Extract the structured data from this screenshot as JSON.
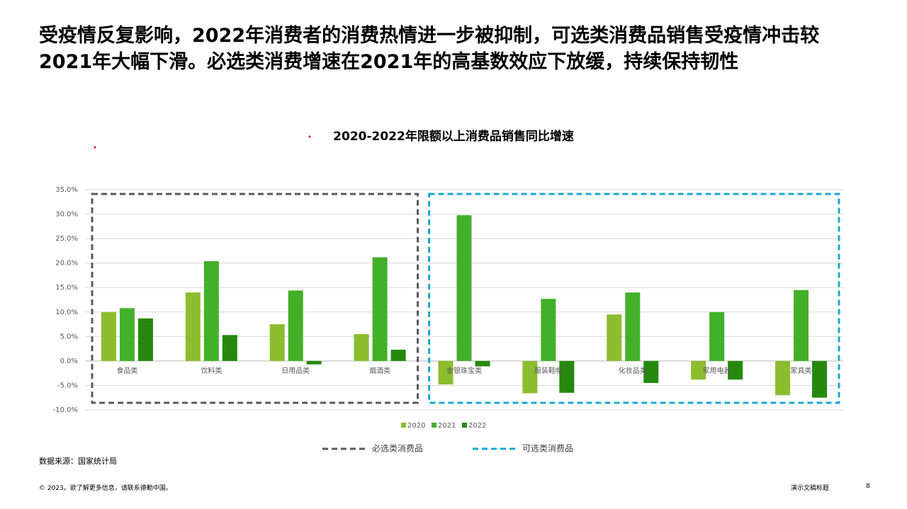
{
  "slide": {
    "headline": "受疫情反复影响，2022年消费者的消费热情进一步被抑制，可选类消费品销售受疫情冲击较2021年大幅下滑。必选类消费增速在2021年的高基数效应下放缓，持续保持韧性",
    "source": "数据来源：国家统计局",
    "copyright": "© 2023。欲了解更多信息，请联系德勤中国。",
    "deck_title": "演示文稿标题",
    "page": "8"
  },
  "chart_data": {
    "type": "bar",
    "title": "2020-2022年限额以上消费品销售同比增速",
    "categories": [
      "食品类",
      "饮料类",
      "日用品类",
      "烟酒类",
      "金银珠宝类",
      "服装鞋帽",
      "化妆品类",
      "家用电器",
      "家具类"
    ],
    "series": [
      {
        "name": "2020",
        "color": "#8cbd2e",
        "values": [
          10.0,
          14.0,
          7.5,
          5.5,
          -4.8,
          -6.6,
          9.5,
          -3.8,
          -7.0
        ]
      },
      {
        "name": "2021",
        "color": "#43b02a",
        "values": [
          10.8,
          20.4,
          14.4,
          21.2,
          29.8,
          12.7,
          14.0,
          10.0,
          14.5
        ]
      },
      {
        "name": "2022",
        "color": "#26890d",
        "values": [
          8.7,
          5.3,
          -0.7,
          2.3,
          -1.1,
          -6.5,
          -4.5,
          -3.8,
          -7.5
        ]
      }
    ],
    "ylim": [
      -10,
      35
    ],
    "yticks": [
      {
        "value": -10,
        "label": "-10.0%"
      },
      {
        "value": -5,
        "label": "-5.0%"
      },
      {
        "value": 0,
        "label": "0.0%"
      },
      {
        "value": 5,
        "label": "5.0%"
      },
      {
        "value": 10,
        "label": "10.0%"
      },
      {
        "value": 15,
        "label": "15.0%"
      },
      {
        "value": 20,
        "label": "20.0%"
      },
      {
        "value": 25,
        "label": "25.0%"
      },
      {
        "value": 30,
        "label": "30.0%"
      },
      {
        "value": 35,
        "label": "35.0%"
      }
    ],
    "grid": true,
    "groups": [
      {
        "name": "必选类消费品",
        "color": "#595959",
        "categories": [
          "食品类",
          "饮料类",
          "日用品类",
          "烟酒类"
        ]
      },
      {
        "name": "可选类消费品",
        "color": "#1ba8d6",
        "categories": [
          "金银珠宝类",
          "服装鞋帽",
          "化妆品类",
          "家用电器",
          "家具类"
        ]
      }
    ]
  }
}
